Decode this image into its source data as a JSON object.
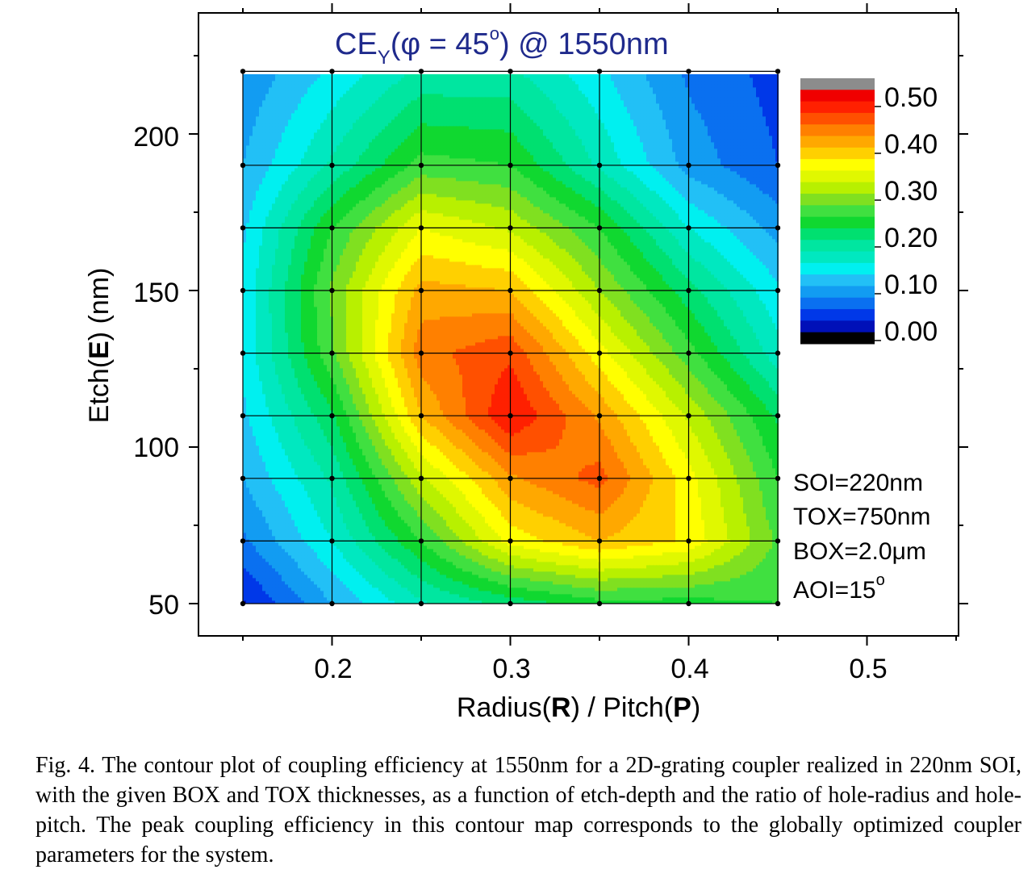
{
  "chart_data": {
    "type": "heatmap",
    "title": {
      "prefix": "CE",
      "subscript": "Y",
      "middle": "(φ = 45",
      "superscript": "o",
      "suffix": ") @ 1550nm"
    },
    "xlabel": {
      "p1": "Radius(",
      "b1": "R",
      "p2": ") / Pitch(",
      "b2": "P",
      "p3": ")"
    },
    "ylabel": {
      "p1": "Etch(",
      "b1": "E",
      "p2": ") (nm)"
    },
    "xlim": [
      0.13,
      0.55
    ],
    "ylim": [
      40,
      230
    ],
    "x_ticks": [
      "0.2",
      "0.3",
      "0.4",
      "0.5"
    ],
    "y_ticks": [
      "50",
      "100",
      "150",
      "200"
    ],
    "grid_x": [
      0.15,
      0.2,
      0.25,
      0.3,
      0.35,
      0.4,
      0.45
    ],
    "grid_y": [
      50,
      70,
      90,
      110,
      130,
      150,
      170,
      190,
      220
    ],
    "z": [
      [
        0.02,
        0.1,
        0.17,
        0.21,
        0.24,
        0.24,
        0.25
      ],
      [
        0.07,
        0.15,
        0.25,
        0.36,
        0.4,
        0.37,
        0.27
      ],
      [
        0.1,
        0.18,
        0.32,
        0.42,
        0.46,
        0.36,
        0.25
      ],
      [
        0.12,
        0.22,
        0.4,
        0.5,
        0.42,
        0.32,
        0.22
      ],
      [
        0.13,
        0.27,
        0.44,
        0.47,
        0.36,
        0.26,
        0.16
      ],
      [
        0.13,
        0.28,
        0.41,
        0.4,
        0.3,
        0.21,
        0.13
      ],
      [
        0.12,
        0.25,
        0.35,
        0.32,
        0.25,
        0.15,
        0.09
      ],
      [
        0.1,
        0.18,
        0.26,
        0.25,
        0.17,
        0.09,
        0.05
      ],
      [
        0.08,
        0.13,
        0.18,
        0.18,
        0.13,
        0.07,
        0.04
      ]
    ],
    "colorbar": {
      "levels": [
        0.0,
        0.025,
        0.05,
        0.075,
        0.1,
        0.125,
        0.15,
        0.175,
        0.2,
        0.225,
        0.25,
        0.275,
        0.3,
        0.325,
        0.35,
        0.375,
        0.4,
        0.425,
        0.45,
        0.475,
        0.5,
        0.525
      ],
      "colors": [
        "#000000",
        "#0010b8",
        "#0038e8",
        "#0a70f0",
        "#129cf2",
        "#22c0f6",
        "#00f0f0",
        "#00e8c0",
        "#00e6a0",
        "#00e070",
        "#10d830",
        "#40e040",
        "#80e020",
        "#b8f000",
        "#e0f800",
        "#ffff00",
        "#ffd000",
        "#ffa800",
        "#ff8000",
        "#ff5000",
        "#ff2000",
        "#f00000",
        "#8c8c8c"
      ],
      "tick_labels": [
        "0.50",
        "0.40",
        "0.30",
        "0.20",
        "0.10",
        "0.00"
      ]
    },
    "annotations": [
      "SOI=220nm",
      "TOX=750nm"
    ],
    "annotation_box": {
      "prefix": "BOX=2.0",
      "mu": "μ",
      "suffix": "m"
    },
    "annotation_aoi": {
      "prefix": "AOI=15",
      "sup": "o"
    }
  },
  "caption": "Fig. 4. The contour plot of coupling efficiency at 1550nm for a 2D-grating coupler realized in 220nm SOI, with the given BOX and TOX thicknesses, as a function of etch-depth and the ratio of hole-radius and hole-pitch. The peak coupling efficiency in this contour map corresponds to the globally optimized coupler parameters for the system."
}
